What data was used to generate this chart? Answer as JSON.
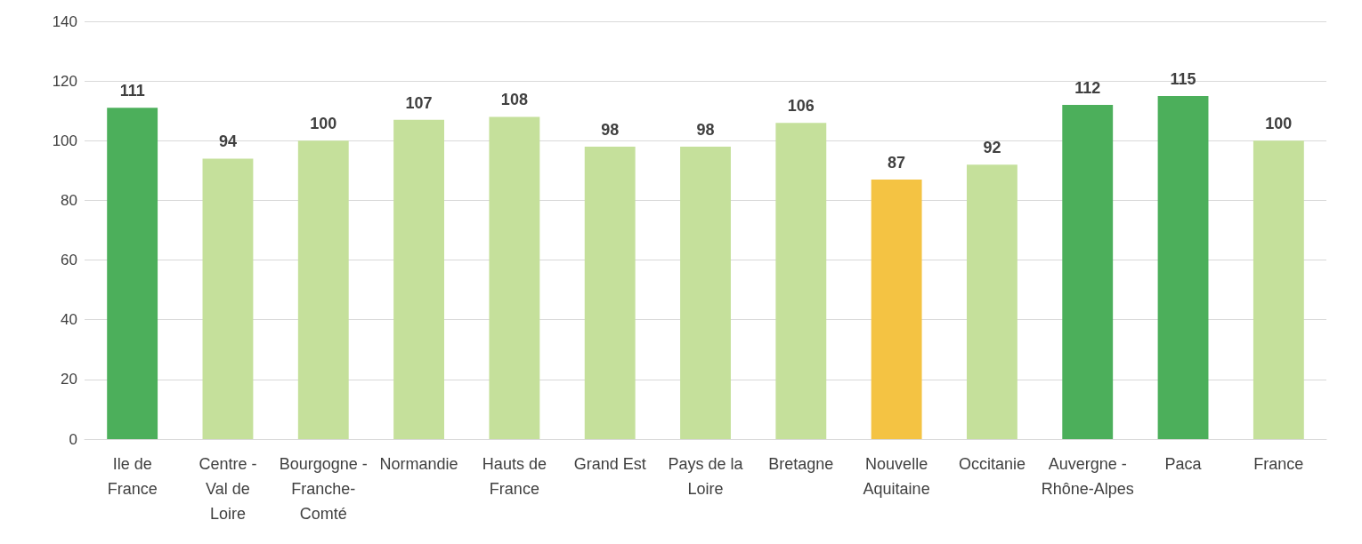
{
  "chart_data": {
    "type": "bar",
    "categories": [
      "Ile de France",
      "Centre - Val de Loire",
      "Bourgogne - Franche-Comté",
      "Normandie",
      "Hauts de France",
      "Grand Est",
      "Pays de la Loire",
      "Bretagne",
      "Nouvelle Aquitaine",
      "Occitanie",
      "Auvergne - Rhône-Alpes",
      "Paca",
      "France"
    ],
    "values": [
      111,
      94,
      100,
      107,
      108,
      98,
      98,
      106,
      87,
      92,
      112,
      115,
      100
    ],
    "colors": [
      "#4caf5b",
      "#c5e09b",
      "#c5e09b",
      "#c5e09b",
      "#c5e09b",
      "#c5e09b",
      "#c5e09b",
      "#c5e09b",
      "#f4c343",
      "#c5e09b",
      "#4caf5b",
      "#4caf5b",
      "#c5e09b"
    ],
    "ylim": [
      0,
      140
    ],
    "yticks": [
      0,
      20,
      40,
      60,
      80,
      100,
      120,
      140
    ],
    "grid": "y",
    "data_labels": true
  }
}
